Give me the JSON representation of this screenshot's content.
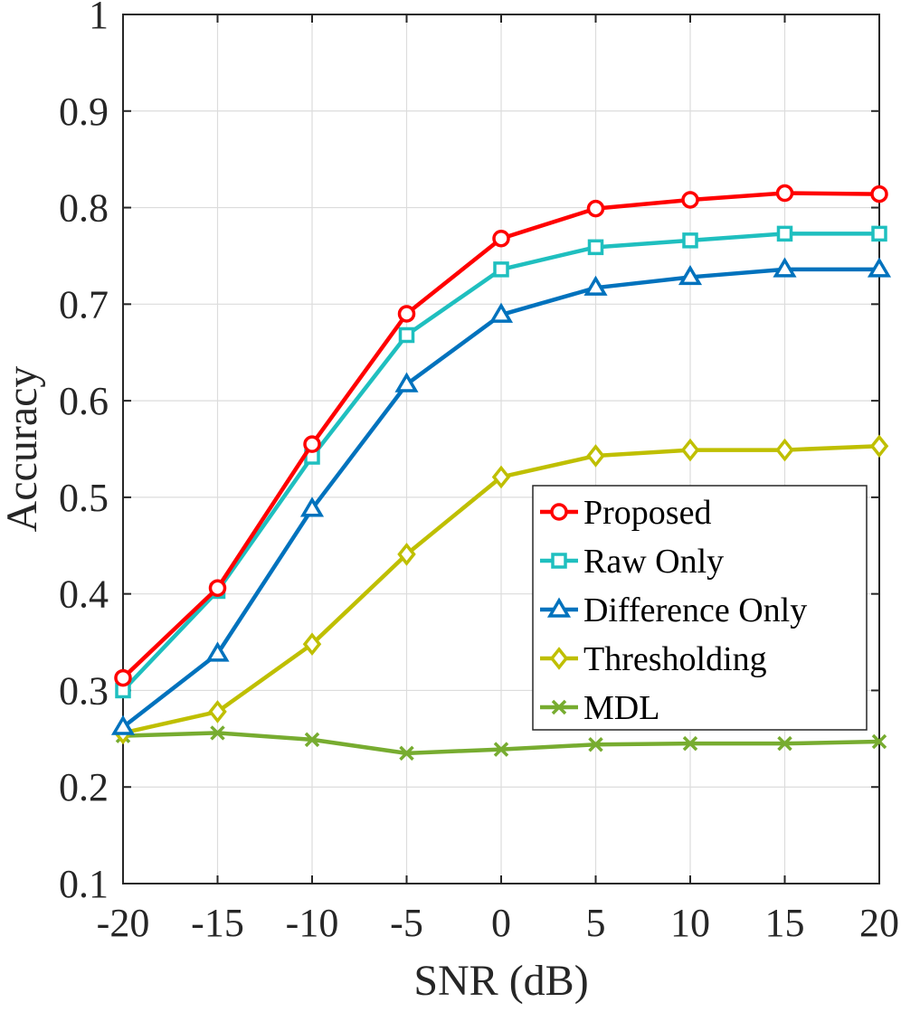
{
  "chart_data": {
    "type": "line",
    "xlabel": "SNR (dB)",
    "ylabel": "Accuracy",
    "x": [
      -20,
      -15,
      -10,
      -5,
      0,
      5,
      10,
      15,
      20
    ],
    "xlim": [
      -20,
      20
    ],
    "ylim": [
      0.1,
      1
    ],
    "xticks": [
      "-20",
      "-15",
      "-10",
      "-5",
      "0",
      "5",
      "10",
      "15",
      "20"
    ],
    "yticks": [
      "0.1",
      "0.2",
      "0.3",
      "0.4",
      "0.5",
      "0.6",
      "0.7",
      "0.8",
      "0.9",
      "1"
    ],
    "grid": true,
    "legend_position": "lower-right",
    "series": [
      {
        "name": "Proposed",
        "color": "#ff0000",
        "marker": "circle",
        "values": [
          0.313,
          0.406,
          0.555,
          0.69,
          0.768,
          0.799,
          0.808,
          0.815,
          0.814
        ]
      },
      {
        "name": "Raw Only",
        "color": "#1fbfbf",
        "marker": "square",
        "values": [
          0.3,
          0.403,
          0.542,
          0.668,
          0.736,
          0.759,
          0.766,
          0.773,
          0.773
        ]
      },
      {
        "name": "Difference Only",
        "color": "#0072bd",
        "marker": "triangle",
        "values": [
          0.262,
          0.338,
          0.488,
          0.617,
          0.689,
          0.717,
          0.728,
          0.736,
          0.736
        ]
      },
      {
        "name": "Thresholding",
        "color": "#bfbf00",
        "marker": "diamond",
        "values": [
          0.256,
          0.278,
          0.348,
          0.441,
          0.521,
          0.543,
          0.549,
          0.549,
          0.553
        ]
      },
      {
        "name": "MDL",
        "color": "#77ac30",
        "marker": "x",
        "values": [
          0.253,
          0.256,
          0.249,
          0.235,
          0.239,
          0.244,
          0.245,
          0.245,
          0.247
        ]
      }
    ]
  }
}
